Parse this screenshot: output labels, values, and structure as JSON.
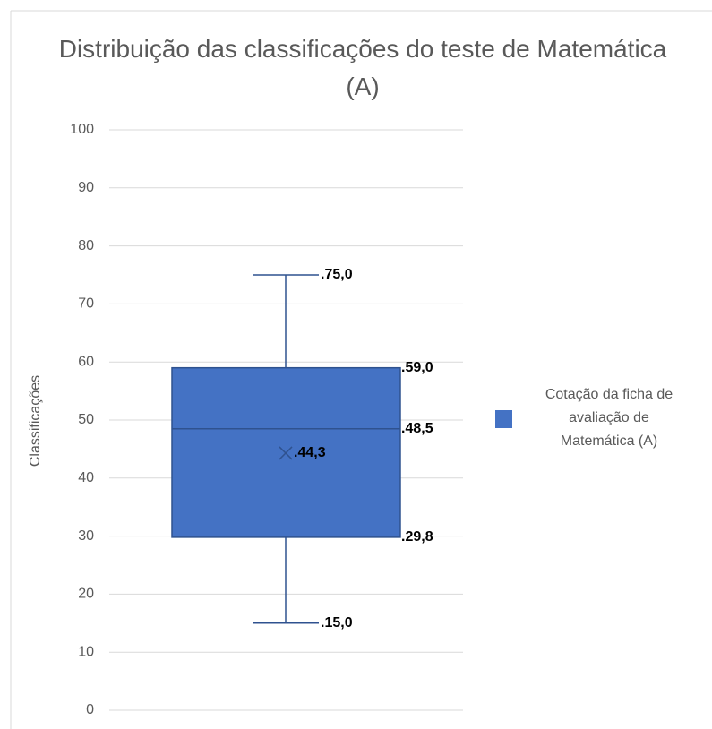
{
  "chart_data": {
    "type": "box",
    "title": "Distribuição das classificações do teste de Matemática (A)",
    "y_label": "Classificações",
    "ylim": [
      0,
      100
    ],
    "yticks": [
      0,
      10,
      20,
      30,
      40,
      50,
      60,
      70,
      80,
      90,
      100
    ],
    "grid": true,
    "legend": "right",
    "series": [
      {
        "name": "Cotação da ficha de avaliação de Matemática (A)",
        "color": "#4472c4",
        "min": 15,
        "q1": 29.8,
        "median": 48.5,
        "q3": 59,
        "max": 75,
        "mean": 44.3,
        "value_labels": {
          "min": ".15,0",
          "q1": ".29,8",
          "median": ".48,5",
          "q3": ".59,0",
          "max": ".75,0",
          "mean": ".44,3"
        }
      }
    ]
  }
}
